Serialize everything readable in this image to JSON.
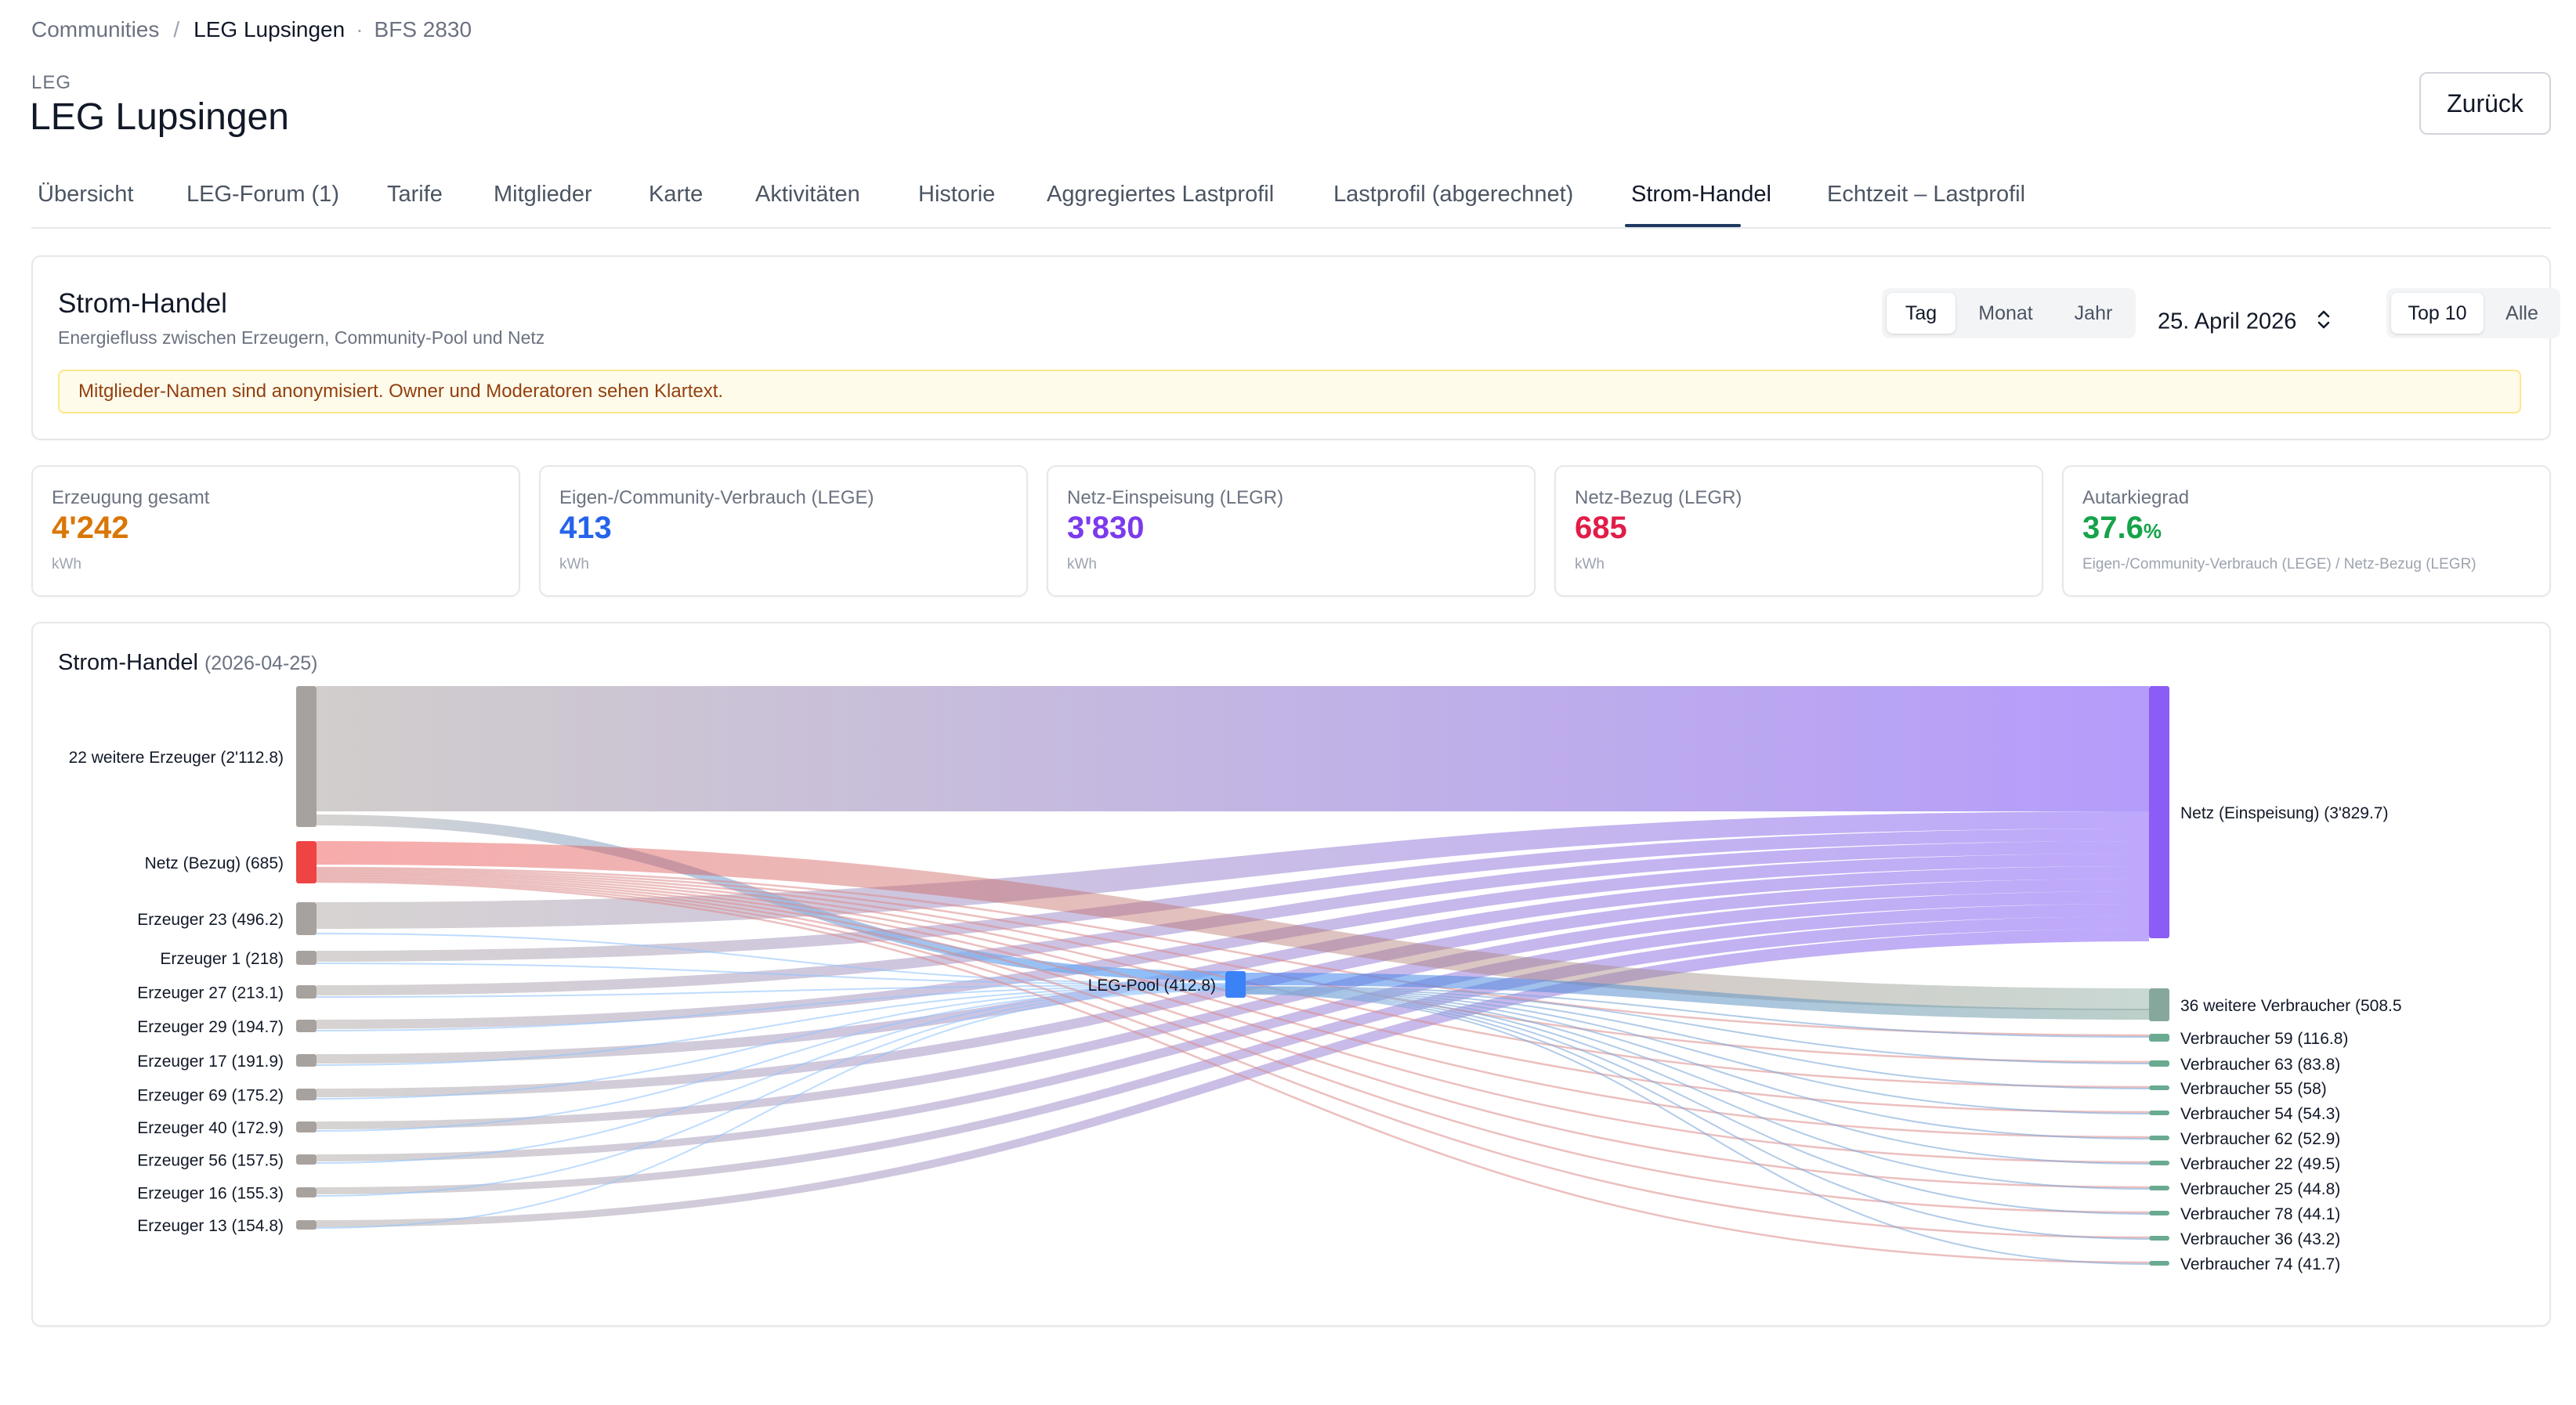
{
  "breadcrumb": {
    "root": "Communities",
    "current": "LEG Lupsingen",
    "meta": "BFS 2830"
  },
  "header": {
    "eyebrow": "LEG",
    "title": "LEG Lupsingen",
    "back_label": "Zurück"
  },
  "tabs": [
    {
      "label": "Übersicht",
      "active": false
    },
    {
      "label": "LEG-Forum (1)",
      "active": false
    },
    {
      "label": "Tarife",
      "active": false
    },
    {
      "label": "Mitglieder",
      "active": false
    },
    {
      "label": "Karte",
      "active": false
    },
    {
      "label": "Aktivitäten",
      "active": false
    },
    {
      "label": "Historie",
      "active": false
    },
    {
      "label": "Aggregiertes Lastprofil",
      "active": false
    },
    {
      "label": "Lastprofil (abgerechnet)",
      "active": false
    },
    {
      "label": "Strom-Handel",
      "active": true
    },
    {
      "label": "Echtzeit – Lastprofil",
      "active": false
    }
  ],
  "section": {
    "title": "Strom-Handel",
    "subtitle": "Energiefluss zwischen Erzeugern, Community-Pool und Netz",
    "period_options": [
      "Tag",
      "Monat",
      "Jahr"
    ],
    "period_selected": "Tag",
    "date": "25. April 2026",
    "limit_options": [
      "Top 10",
      "Alle"
    ],
    "limit_selected": "Top 10",
    "notice": "Mitglieder-Namen sind anonymisiert. Owner und Moderatoren sehen Klartext."
  },
  "kpis": [
    {
      "label": "Erzeugung gesamt",
      "value": "4'242",
      "suffix": "",
      "unit": "kWh",
      "color": "#d97706"
    },
    {
      "label": "Eigen-/Community-Verbrauch (LEGE)",
      "value": "413",
      "suffix": "",
      "unit": "kWh",
      "color": "#2563eb"
    },
    {
      "label": "Netz-Einspeisung (LEGR)",
      "value": "3'830",
      "suffix": "",
      "unit": "kWh",
      "color": "#7c3aed"
    },
    {
      "label": "Netz-Bezug (LEGR)",
      "value": "685",
      "suffix": "",
      "unit": "kWh",
      "color": "#e11d48"
    },
    {
      "label": "Autarkiegrad",
      "value": "37.6",
      "suffix": "%",
      "unit": "Eigen-/Community-Verbrauch (LEGE) / Netz-Bezug (LEGR)",
      "color": "#16a34a"
    }
  ],
  "chart": {
    "title": "Strom-Handel",
    "date": "(2026-04-25)"
  },
  "chart_data": {
    "type": "sankey",
    "title": "Strom-Handel (2026-04-25)",
    "unit": "kWh",
    "sources": [
      {
        "label": "22 weitere Erzeuger (2'112.8)",
        "value": 2112.8,
        "color": "#a8a29e"
      },
      {
        "label": "Netz (Bezug) (685)",
        "value": 685,
        "color": "#ef4444"
      },
      {
        "label": "Erzeuger 23 (496.2)",
        "value": 496.2,
        "color": "#a8a29e"
      },
      {
        "label": "Erzeuger 1 (218)",
        "value": 218,
        "color": "#a8a29e"
      },
      {
        "label": "Erzeuger 27 (213.1)",
        "value": 213.1,
        "color": "#a8a29e"
      },
      {
        "label": "Erzeuger 29 (194.7)",
        "value": 194.7,
        "color": "#a8a29e"
      },
      {
        "label": "Erzeuger 17 (191.9)",
        "value": 191.9,
        "color": "#a8a29e"
      },
      {
        "label": "Erzeuger 69 (175.2)",
        "value": 175.2,
        "color": "#a8a29e"
      },
      {
        "label": "Erzeuger 40 (172.9)",
        "value": 172.9,
        "color": "#a8a29e"
      },
      {
        "label": "Erzeuger 56 (157.5)",
        "value": 157.5,
        "color": "#a8a29e"
      },
      {
        "label": "Erzeuger 16 (155.3)",
        "value": 155.3,
        "color": "#a8a29e"
      },
      {
        "label": "Erzeuger 13 (154.8)",
        "value": 154.8,
        "color": "#a8a29e"
      }
    ],
    "pool": {
      "label": "LEG-Pool (412.8)",
      "value": 412.8,
      "color": "#3b82f6"
    },
    "targets": [
      {
        "label": "Netz (Einspeisung) (3'829.7)",
        "value": 3829.7,
        "color": "#8b5cf6"
      },
      {
        "label": "36 weitere Verbraucher (508.5",
        "value": 508.5,
        "color": "#86a89c"
      },
      {
        "label": "Verbraucher 59 (116.8)",
        "value": 116.8,
        "color": "#6aaa90"
      },
      {
        "label": "Verbraucher 63 (83.8)",
        "value": 83.8,
        "color": "#6aaa90"
      },
      {
        "label": "Verbraucher 55 (58)",
        "value": 58,
        "color": "#6aaa90"
      },
      {
        "label": "Verbraucher 54 (54.3)",
        "value": 54.3,
        "color": "#6aaa90"
      },
      {
        "label": "Verbraucher 62 (52.9)",
        "value": 52.9,
        "color": "#6aaa90"
      },
      {
        "label": "Verbraucher 22 (49.5)",
        "value": 49.5,
        "color": "#6aaa90"
      },
      {
        "label": "Verbraucher 25 (44.8)",
        "value": 44.8,
        "color": "#6aaa90"
      },
      {
        "label": "Verbraucher 78 (44.1)",
        "value": 44.1,
        "color": "#6aaa90"
      },
      {
        "label": "Verbraucher 36 (43.2)",
        "value": 43.2,
        "color": "#6aaa90"
      },
      {
        "label": "Verbraucher 74 (41.7)",
        "value": 41.7,
        "color": "#6aaa90"
      }
    ]
  }
}
